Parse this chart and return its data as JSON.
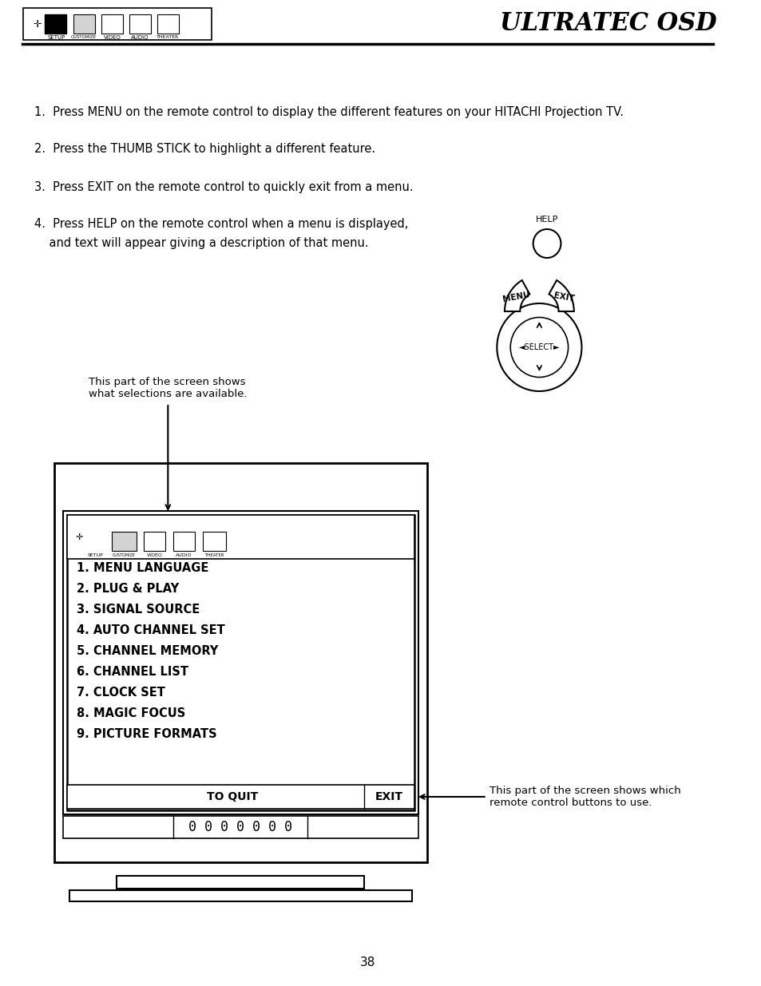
{
  "title": "ULTRATEC OSD",
  "bg_color": "#ffffff",
  "text_color": "#000000",
  "instructions": [
    "1.  Press MENU on the remote control to display the different features on your HITACHI Projection TV.",
    "2.  Press the THUMB STICK to highlight a different feature.",
    "3.  Press EXIT on the remote control to quickly exit from a menu.",
    "4.  Press HELP on the remote control when a menu is displayed,\n    and text will appear giving a description of that menu."
  ],
  "menu_items": [
    "1. MENU LANGUAGE",
    "2. PLUG & PLAY",
    "3. SIGNAL SOURCE",
    "4. AUTO CHANNEL SET",
    "5. CHANNEL MEMORY",
    "6. CHANNEL LIST",
    "7. CLOCK SET",
    "8. MAGIC FOCUS",
    "9. PICTURE FORMATS"
  ],
  "annotation_left": "This part of the screen shows\nwhat selections are available.",
  "annotation_right": "This part of the screen shows which\nremote control buttons to use.",
  "page_number": "38",
  "channel_display": "0 0 0 0 0 0 0"
}
